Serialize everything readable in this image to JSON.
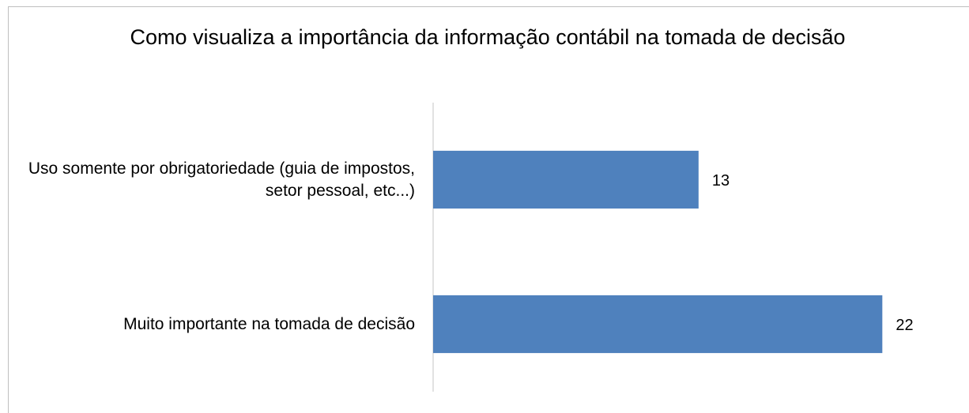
{
  "chart_data": {
    "type": "bar",
    "orientation": "horizontal",
    "title": "Como visualiza a importância da informação contábil na tomada de decisão",
    "categories": [
      "Uso somente por obrigatoriedade (guia de impostos, setor pessoal, etc...)",
      "Muito importante na tomada de decisão"
    ],
    "values": [
      13,
      22
    ],
    "color": "#4f81bd",
    "xlim": [
      0,
      24
    ]
  }
}
